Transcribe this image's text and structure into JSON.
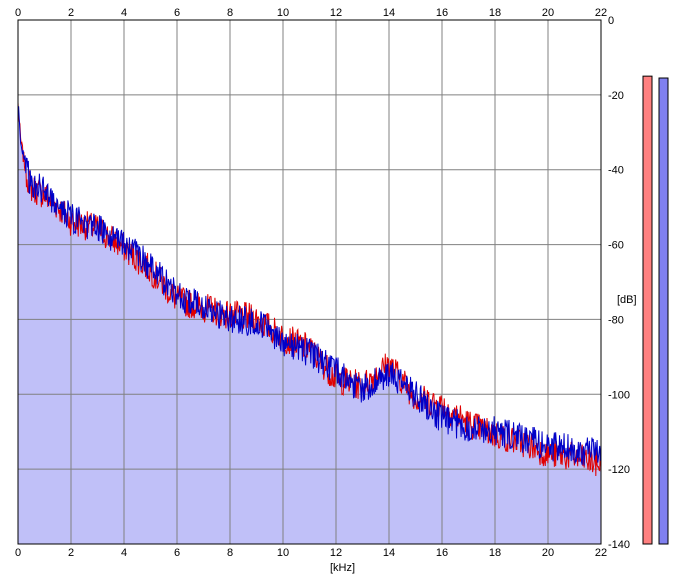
{
  "chart_data": {
    "type": "area",
    "title": "",
    "xlabel": "[kHz]",
    "ylabel": "[dB]",
    "xlim": [
      0,
      22
    ],
    "ylim": [
      -140,
      0
    ],
    "x_ticks": [
      0,
      2,
      4,
      6,
      8,
      10,
      12,
      14,
      16,
      18,
      20,
      22
    ],
    "x_tick_labels": [
      "0",
      "2",
      "4",
      "6",
      "8",
      "10",
      "12",
      "14",
      "16",
      "18",
      "20",
      "22"
    ],
    "y_ticks": [
      0,
      -20,
      -40,
      -60,
      -80,
      -100,
      -120,
      -140
    ],
    "y_tick_labels": [
      "0",
      "-20",
      "-40",
      "-60",
      "-80",
      "-100",
      "-120",
      "-140"
    ],
    "grid": true,
    "legend": "none",
    "colors": {
      "background": "#ffffff",
      "grid": "#808080",
      "fill": "#c0c0f8",
      "left_channel": "#e00000",
      "right_channel": "#0000c8",
      "left_meter": "#ff8080",
      "right_meter": "#8080f0"
    },
    "series": [
      {
        "channel": "left",
        "color": "#e00000",
        "x": [
          0,
          0.1,
          0.3,
          0.5,
          1,
          1.5,
          2,
          3,
          4,
          5,
          6,
          7,
          8,
          9,
          10,
          11,
          12,
          13,
          14,
          15,
          16,
          17,
          18,
          19,
          20,
          21,
          22
        ],
        "y": [
          -22,
          -32,
          -40,
          -44,
          -46,
          -49,
          -53,
          -55,
          -60,
          -66,
          -74,
          -76,
          -78,
          -79,
          -84,
          -87,
          -95,
          -97,
          -91,
          -100,
          -102,
          -107,
          -110,
          -112,
          -115,
          -116,
          -118
        ]
      },
      {
        "channel": "right",
        "color": "#0000c8",
        "x": [
          0,
          0.1,
          0.3,
          0.5,
          1,
          1.5,
          2,
          3,
          4,
          5,
          6,
          7,
          8,
          9,
          10,
          11,
          12,
          13,
          14,
          15,
          16,
          17,
          18,
          19,
          20,
          21,
          22
        ],
        "y": [
          -22,
          -31,
          -39,
          -43,
          -45,
          -48,
          -52,
          -55,
          -59,
          -65,
          -73,
          -76,
          -79,
          -80,
          -85,
          -88,
          -93,
          -98,
          -94,
          -99,
          -106,
          -108,
          -109,
          -111,
          -113,
          -114,
          -115
        ]
      }
    ],
    "level_meters": [
      {
        "channel": "left",
        "color": "#ff8080",
        "top_db": -15,
        "bottom_db": -140
      },
      {
        "channel": "right",
        "color": "#8080f0",
        "top_db": -15.5,
        "bottom_db": -140
      }
    ]
  }
}
